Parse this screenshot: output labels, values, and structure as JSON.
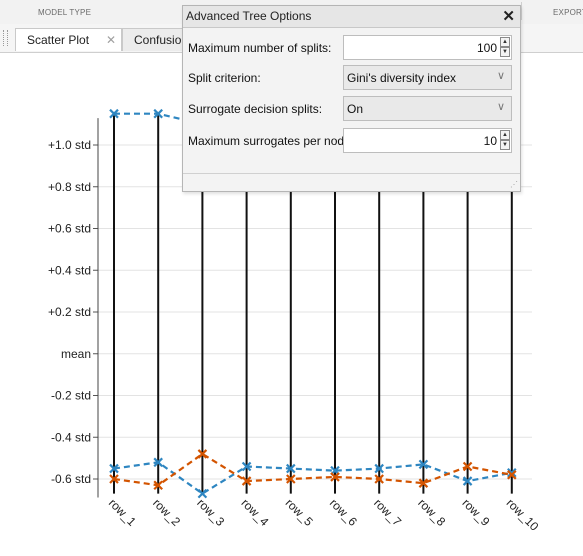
{
  "toolstrip": {
    "sections": [
      "MODEL TYPE",
      "EXPORT"
    ]
  },
  "tabs": [
    {
      "label": "Scatter Plot",
      "close": "✕"
    },
    {
      "label": "Confusion M"
    }
  ],
  "dialog": {
    "title": "Advanced Tree Options",
    "close": "✕",
    "options": [
      {
        "label": "Maximum number of splits:",
        "value": "100",
        "kind": "number"
      },
      {
        "label": "Split criterion:",
        "value": "Gini's diversity index",
        "kind": "select"
      },
      {
        "label": "Surrogate decision splits:",
        "value": "On",
        "kind": "select"
      },
      {
        "label": "Maximum surrogates per node:",
        "value": "10",
        "kind": "number"
      }
    ]
  },
  "chart_data": {
    "type": "line",
    "title": "",
    "xlabel": "",
    "ylabel": "",
    "categories": [
      "row_1",
      "row_2",
      "row_3",
      "row_4",
      "row_5",
      "row_6",
      "row_7",
      "row_8",
      "row_9",
      "row_10"
    ],
    "yticks": [
      {
        "label": "+1.0 std",
        "value": 1.0
      },
      {
        "label": "+0.8 std",
        "value": 0.8
      },
      {
        "label": "+0.6 std",
        "value": 0.6
      },
      {
        "label": "+0.4 std",
        "value": 0.4
      },
      {
        "label": "+0.2 std",
        "value": 0.2
      },
      {
        "label": "mean",
        "value": 0.0
      },
      {
        "label": "-0.2 std",
        "value": -0.2
      },
      {
        "label": "-0.4 std",
        "value": -0.4
      },
      {
        "label": "-0.6 std",
        "value": -0.6
      }
    ],
    "ylim": [
      -0.65,
      1.1
    ],
    "grid": true,
    "range_lines": {
      "low": -0.67,
      "high": 1.15
    },
    "series": [
      {
        "color": "#2e86c1",
        "marker": "x",
        "dash": true,
        "values": [
          1.15,
          1.15,
          1.1,
          1.1,
          1.1,
          1.1,
          1.1,
          1.1,
          1.1,
          1.1
        ]
      },
      {
        "color": "#2e86c1",
        "marker": "x",
        "dash": true,
        "values": [
          -0.55,
          -0.52,
          -0.67,
          -0.54,
          -0.55,
          -0.56,
          -0.55,
          -0.53,
          -0.61,
          -0.57
        ]
      },
      {
        "color": "#d35400",
        "marker": "x",
        "dash": true,
        "values": [
          -0.6,
          -0.63,
          -0.48,
          -0.61,
          -0.6,
          -0.59,
          -0.6,
          -0.62,
          -0.54,
          -0.58
        ]
      }
    ]
  }
}
